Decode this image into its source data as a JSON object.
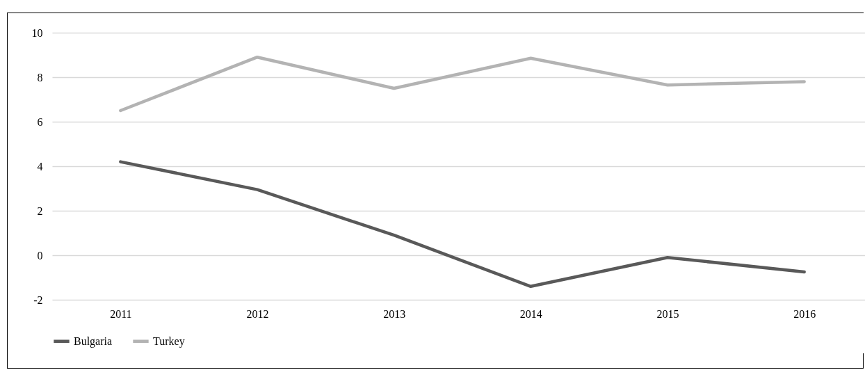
{
  "chart_data": {
    "type": "line",
    "categories": [
      "2011",
      "2012",
      "2013",
      "2014",
      "2015",
      "2016"
    ],
    "series": [
      {
        "name": "Bulgaria",
        "color": "#595959",
        "values": [
          4.2,
          2.95,
          0.9,
          -1.4,
          -0.1,
          -0.75
        ]
      },
      {
        "name": "Turkey",
        "color": "#b3b3b3",
        "values": [
          6.5,
          8.9,
          7.5,
          8.85,
          7.65,
          7.8
        ]
      }
    ],
    "ylim": [
      -2,
      10
    ],
    "yticks": [
      -2,
      0,
      2,
      4,
      6,
      8,
      10
    ],
    "grid": "y",
    "legend": "bottom",
    "marker": "none",
    "line_style": "solid"
  }
}
